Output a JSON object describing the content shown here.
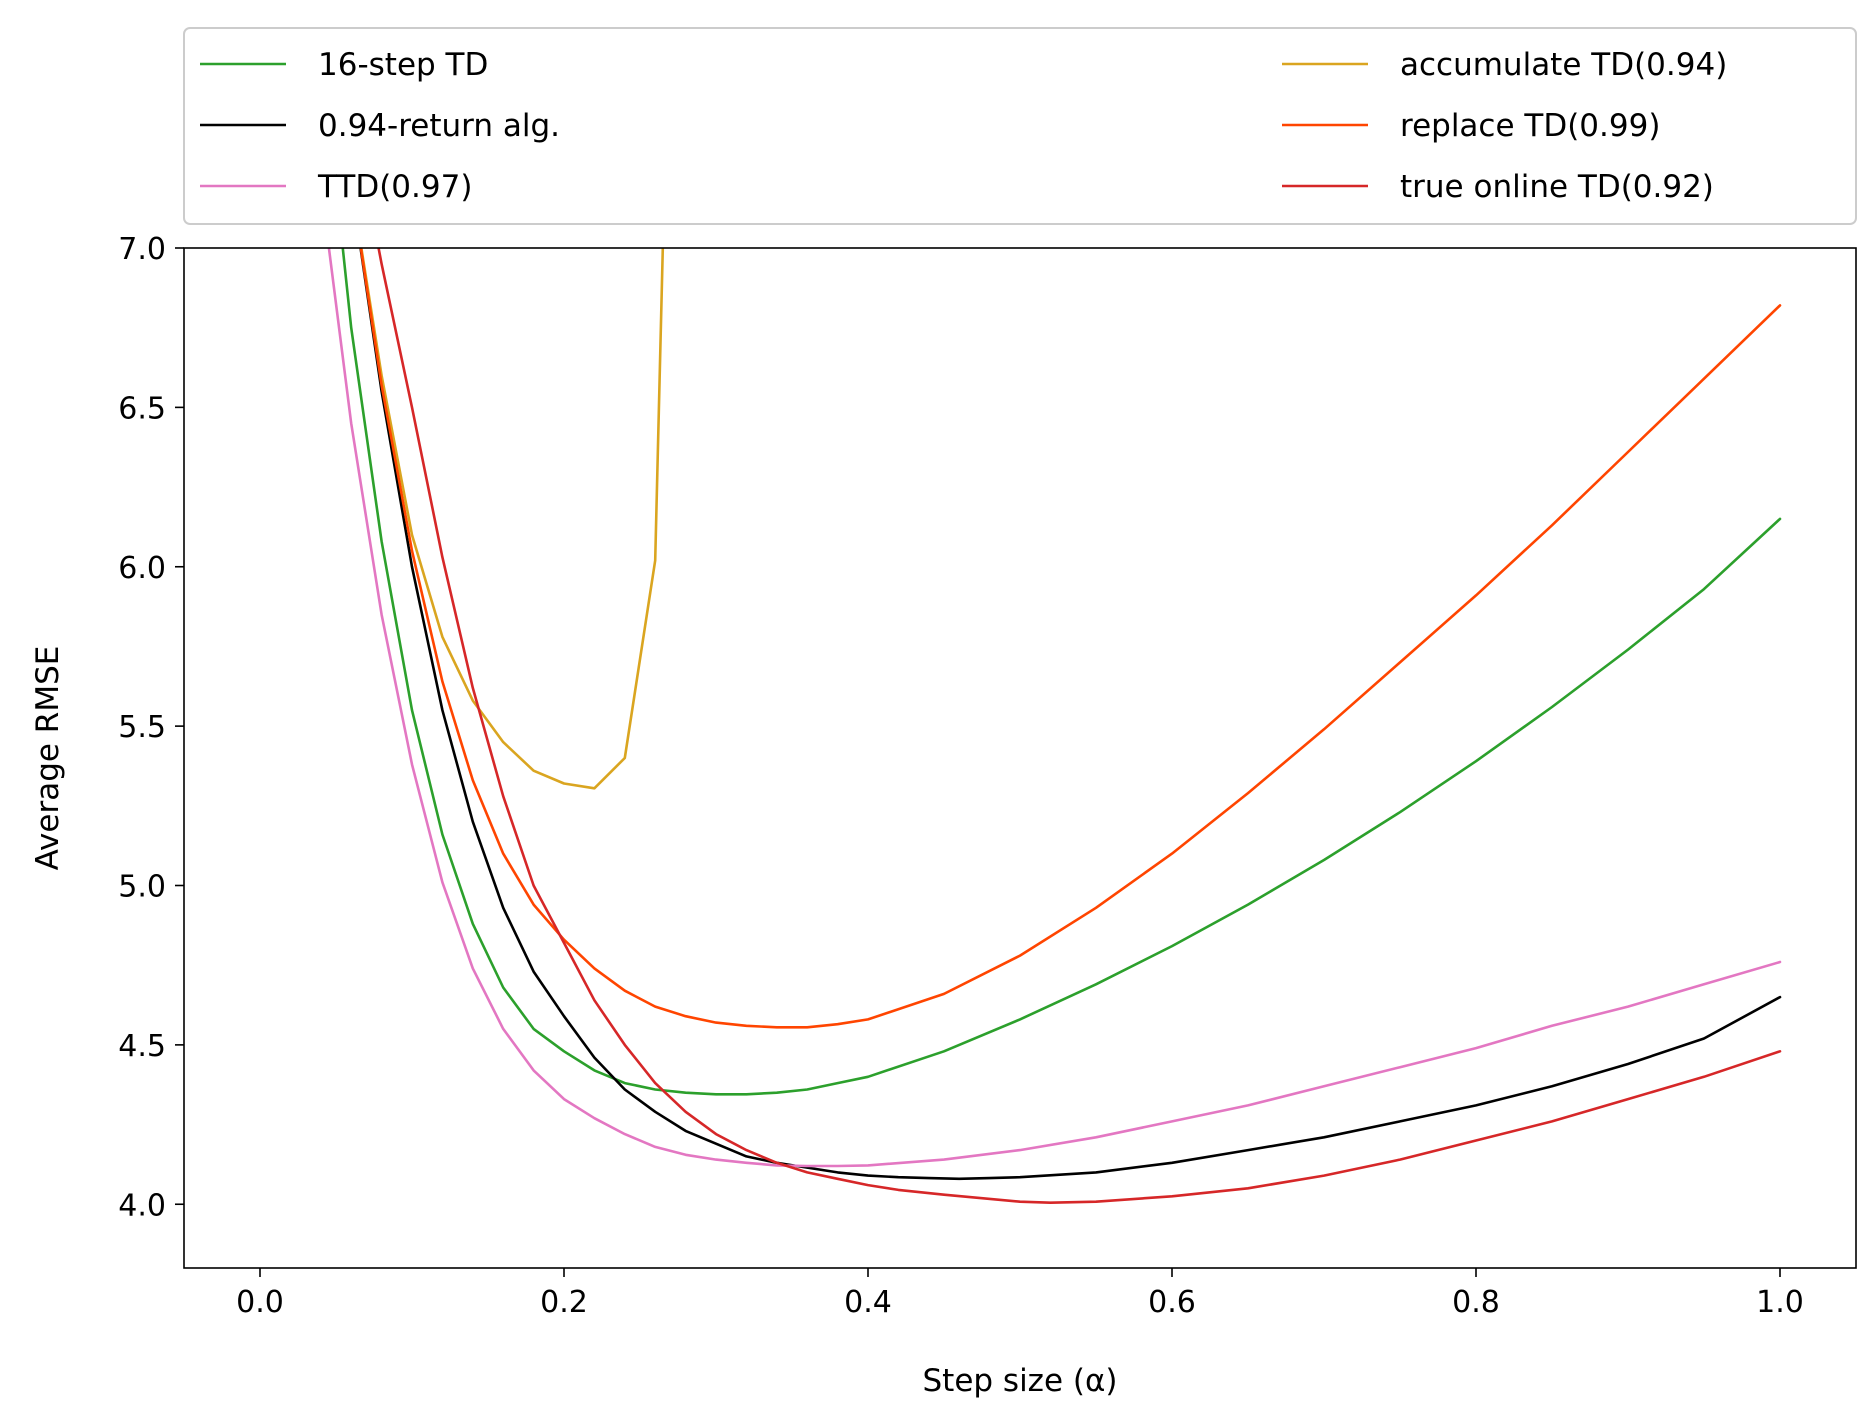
{
  "chart_data": {
    "type": "line",
    "title": "",
    "xlabel": "Step size (α)",
    "ylabel": "Average RMSE",
    "xlim": [
      -0.05,
      1.05
    ],
    "ylim": [
      3.8,
      7.0
    ],
    "xticks": [
      0.0,
      0.2,
      0.4,
      0.6,
      0.8,
      1.0
    ],
    "xtick_labels": [
      "0.0",
      "0.2",
      "0.4",
      "0.6",
      "0.8",
      "1.0"
    ],
    "yticks": [
      4.0,
      4.5,
      5.0,
      5.5,
      6.0,
      6.5,
      7.0
    ],
    "ytick_labels": [
      "4.0",
      "4.5",
      "5.0",
      "5.5",
      "6.0",
      "6.5",
      "7.0"
    ],
    "grid": false,
    "legend": {
      "placement": "top, above plot",
      "columns": 2
    },
    "series": [
      {
        "name": "16-step TD",
        "color": "#2ca02c",
        "x": [
          0.05,
          0.06,
          0.08,
          0.1,
          0.12,
          0.14,
          0.16,
          0.18,
          0.2,
          0.22,
          0.24,
          0.26,
          0.28,
          0.3,
          0.32,
          0.34,
          0.36,
          0.38,
          0.4,
          0.45,
          0.5,
          0.55,
          0.6,
          0.65,
          0.7,
          0.75,
          0.8,
          0.85,
          0.9,
          0.95,
          1.0
        ],
        "y": [
          7.2,
          6.75,
          6.08,
          5.55,
          5.16,
          4.88,
          4.68,
          4.55,
          4.48,
          4.42,
          4.38,
          4.36,
          4.35,
          4.345,
          4.345,
          4.35,
          4.36,
          4.38,
          4.4,
          4.48,
          4.58,
          4.69,
          4.81,
          4.94,
          5.08,
          5.23,
          5.39,
          5.56,
          5.74,
          5.93,
          6.15
        ]
      },
      {
        "name": "0.94-return alg.",
        "color": "#000000",
        "x": [
          0.06,
          0.08,
          0.1,
          0.12,
          0.14,
          0.16,
          0.18,
          0.2,
          0.22,
          0.24,
          0.26,
          0.28,
          0.3,
          0.32,
          0.34,
          0.36,
          0.38,
          0.4,
          0.42,
          0.44,
          0.46,
          0.48,
          0.5,
          0.55,
          0.6,
          0.65,
          0.7,
          0.75,
          0.8,
          0.85,
          0.9,
          0.95,
          1.0
        ],
        "y": [
          7.2,
          6.55,
          6.0,
          5.55,
          5.2,
          4.93,
          4.73,
          4.59,
          4.46,
          4.36,
          4.29,
          4.23,
          4.19,
          4.15,
          4.13,
          4.115,
          4.1,
          4.09,
          4.085,
          4.082,
          4.08,
          4.082,
          4.085,
          4.1,
          4.13,
          4.17,
          4.21,
          4.26,
          4.31,
          4.37,
          4.44,
          4.52,
          4.65
        ]
      },
      {
        "name": "TTD(0.97)",
        "color": "#e377c2",
        "x": [
          0.04,
          0.06,
          0.08,
          0.1,
          0.12,
          0.14,
          0.16,
          0.18,
          0.2,
          0.22,
          0.24,
          0.26,
          0.28,
          0.3,
          0.32,
          0.34,
          0.36,
          0.38,
          0.4,
          0.45,
          0.5,
          0.55,
          0.6,
          0.65,
          0.7,
          0.75,
          0.8,
          0.85,
          0.9,
          0.95,
          1.0
        ],
        "y": [
          7.2,
          6.45,
          5.85,
          5.38,
          5.01,
          4.74,
          4.55,
          4.42,
          4.33,
          4.27,
          4.22,
          4.18,
          4.155,
          4.14,
          4.13,
          4.122,
          4.12,
          4.12,
          4.122,
          4.14,
          4.17,
          4.21,
          4.26,
          4.31,
          4.37,
          4.43,
          4.49,
          4.56,
          4.62,
          4.69,
          4.76
        ]
      },
      {
        "name": "accumulate TD(0.94)",
        "color": "#daa520",
        "x": [
          0.06,
          0.08,
          0.1,
          0.12,
          0.14,
          0.16,
          0.18,
          0.2,
          0.22,
          0.24,
          0.26,
          0.265
        ],
        "y": [
          7.2,
          6.6,
          6.1,
          5.78,
          5.58,
          5.45,
          5.36,
          5.32,
          5.305,
          5.4,
          6.02,
          7.0
        ]
      },
      {
        "name": "replace TD(0.99)",
        "color": "#ff4500",
        "x": [
          0.06,
          0.08,
          0.1,
          0.12,
          0.14,
          0.16,
          0.18,
          0.2,
          0.22,
          0.24,
          0.26,
          0.28,
          0.3,
          0.32,
          0.34,
          0.36,
          0.38,
          0.4,
          0.45,
          0.5,
          0.55,
          0.6,
          0.65,
          0.7,
          0.75,
          0.8,
          0.85,
          0.9,
          0.95,
          1.0
        ],
        "y": [
          7.2,
          6.57,
          6.05,
          5.64,
          5.33,
          5.1,
          4.94,
          4.83,
          4.74,
          4.67,
          4.62,
          4.59,
          4.57,
          4.56,
          4.555,
          4.555,
          4.565,
          4.58,
          4.66,
          4.78,
          4.93,
          5.1,
          5.29,
          5.49,
          5.7,
          5.91,
          6.13,
          6.36,
          6.59,
          6.82
        ]
      },
      {
        "name": "true online TD(0.92)",
        "color": "#d62728",
        "x": [
          0.07,
          0.08,
          0.1,
          0.12,
          0.14,
          0.16,
          0.18,
          0.2,
          0.22,
          0.24,
          0.26,
          0.28,
          0.3,
          0.32,
          0.34,
          0.36,
          0.38,
          0.4,
          0.42,
          0.45,
          0.5,
          0.52,
          0.55,
          0.6,
          0.65,
          0.7,
          0.75,
          0.8,
          0.85,
          0.9,
          0.95,
          1.0
        ],
        "y": [
          7.2,
          6.95,
          6.5,
          6.03,
          5.62,
          5.28,
          5.0,
          4.82,
          4.64,
          4.5,
          4.38,
          4.29,
          4.22,
          4.17,
          4.13,
          4.1,
          4.08,
          4.06,
          4.045,
          4.03,
          4.008,
          4.005,
          4.008,
          4.025,
          4.05,
          4.09,
          4.14,
          4.2,
          4.26,
          4.33,
          4.4,
          4.48
        ]
      }
    ]
  }
}
